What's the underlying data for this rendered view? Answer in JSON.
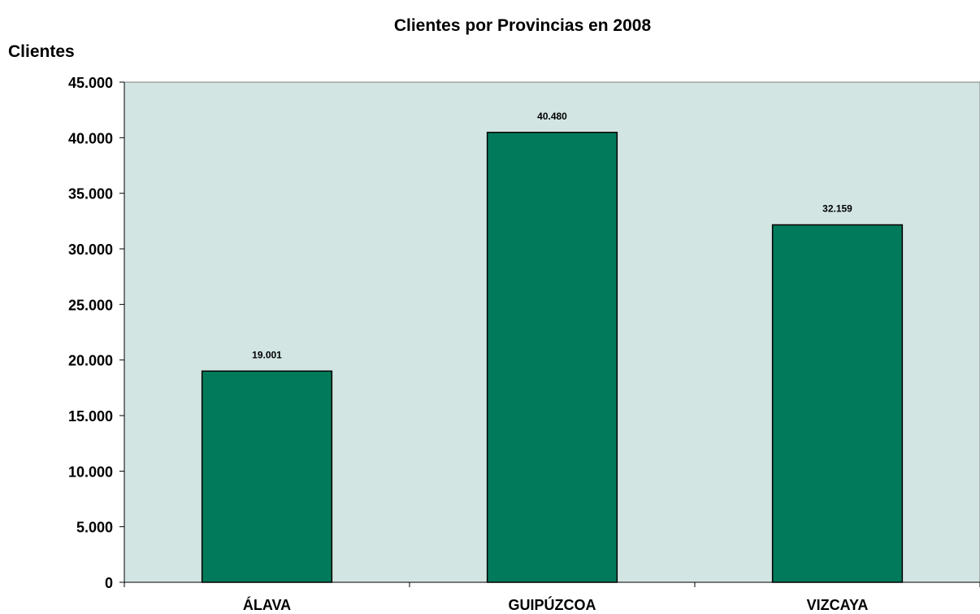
{
  "chart_data": {
    "type": "bar",
    "title": "Clientes por Provincias en 2008",
    "ylabel": "Clientes",
    "xlabel": "",
    "categories": [
      "ÁLAVA",
      "GUIPÚZCOA",
      "VIZCAYA"
    ],
    "values": [
      19001,
      40480,
      32159
    ],
    "value_labels": [
      "19.001",
      "40.480",
      "32.159"
    ],
    "ylim": [
      0,
      45000
    ],
    "y_ticks": [
      0,
      5000,
      10000,
      15000,
      20000,
      25000,
      30000,
      35000,
      40000,
      45000
    ],
    "y_tick_labels": [
      "0",
      "5.000",
      "10.000",
      "15.000",
      "20.000",
      "25.000",
      "30.000",
      "35.000",
      "40.000",
      "45.000"
    ],
    "grid": false,
    "legend": "none",
    "colors": {
      "bar": "#007a5a",
      "plot_background": "#d2e5e3",
      "axis": "#000000"
    }
  }
}
